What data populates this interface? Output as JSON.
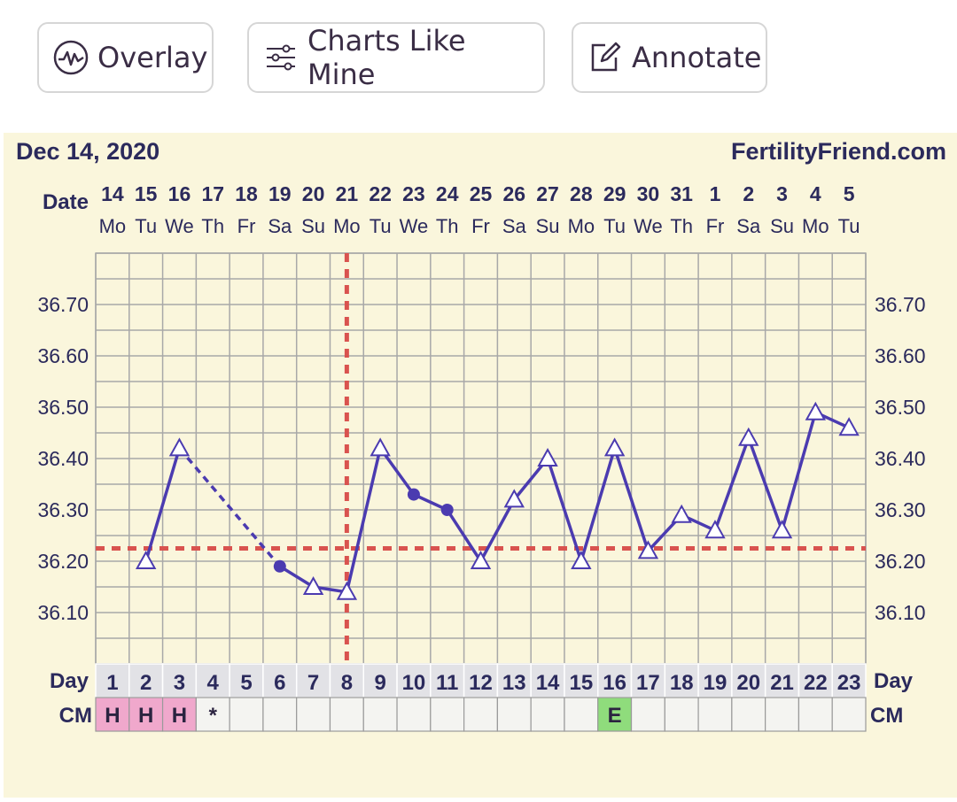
{
  "toolbar": {
    "overlay": {
      "label": "Overlay",
      "icon": "pulse-circle-icon"
    },
    "charts_like_mine": {
      "label": "Charts Like Mine",
      "icon": "sliders-icon"
    },
    "annotate": {
      "label": "Annotate",
      "icon": "edit-icon"
    }
  },
  "chart_data": {
    "type": "line",
    "title": "Dec 14, 2020",
    "brand": "FertilityFriend.com",
    "date_label": "Date",
    "day_label": "Day",
    "cm_label": "CM",
    "dates": [
      "14",
      "15",
      "16",
      "17",
      "18",
      "19",
      "20",
      "21",
      "22",
      "23",
      "24",
      "25",
      "26",
      "27",
      "28",
      "29",
      "30",
      "31",
      "1",
      "2",
      "3",
      "4",
      "5"
    ],
    "weekdays": [
      "Mo",
      "Tu",
      "We",
      "Th",
      "Fr",
      "Sa",
      "Su",
      "Mo",
      "Tu",
      "We",
      "Th",
      "Fr",
      "Sa",
      "Su",
      "Mo",
      "Tu",
      "We",
      "Th",
      "Fr",
      "Sa",
      "Su",
      "Mo",
      "Tu"
    ],
    "days": [
      1,
      2,
      3,
      4,
      5,
      6,
      7,
      8,
      9,
      10,
      11,
      12,
      13,
      14,
      15,
      16,
      17,
      18,
      19,
      20,
      21,
      22,
      23
    ],
    "ylim": [
      36.0,
      36.8
    ],
    "yticks": [
      "36.10",
      "36.20",
      "36.30",
      "36.40",
      "36.50",
      "36.60",
      "36.70"
    ],
    "temps": [
      {
        "day": 2,
        "value": 36.2,
        "marker": "triangle"
      },
      {
        "day": 3,
        "value": 36.42,
        "marker": "triangle"
      },
      {
        "day": 6,
        "value": 36.19,
        "marker": "circle"
      },
      {
        "day": 7,
        "value": 36.15,
        "marker": "triangle"
      },
      {
        "day": 8,
        "value": 36.14,
        "marker": "triangle"
      },
      {
        "day": 9,
        "value": 36.42,
        "marker": "triangle"
      },
      {
        "day": 10,
        "value": 36.33,
        "marker": "circle"
      },
      {
        "day": 11,
        "value": 36.3,
        "marker": "circle"
      },
      {
        "day": 12,
        "value": 36.2,
        "marker": "triangle"
      },
      {
        "day": 13,
        "value": 36.32,
        "marker": "triangle"
      },
      {
        "day": 14,
        "value": 36.4,
        "marker": "triangle"
      },
      {
        "day": 15,
        "value": 36.2,
        "marker": "triangle"
      },
      {
        "day": 16,
        "value": 36.42,
        "marker": "triangle"
      },
      {
        "day": 17,
        "value": 36.22,
        "marker": "triangle"
      },
      {
        "day": 18,
        "value": 36.29,
        "marker": "triangle"
      },
      {
        "day": 19,
        "value": 36.26,
        "marker": "triangle"
      },
      {
        "day": 20,
        "value": 36.44,
        "marker": "triangle"
      },
      {
        "day": 21,
        "value": 36.26,
        "marker": "triangle"
      },
      {
        "day": 22,
        "value": 36.49,
        "marker": "triangle"
      },
      {
        "day": 23,
        "value": 36.46,
        "marker": "triangle"
      }
    ],
    "gap_segments": [
      [
        3,
        6
      ]
    ],
    "coverline": 36.225,
    "ovulation_day": 8,
    "cm": [
      {
        "day": 1,
        "code": "H",
        "color": "#f0a8cc"
      },
      {
        "day": 2,
        "code": "H",
        "color": "#f0a8cc"
      },
      {
        "day": 3,
        "code": "H",
        "color": "#f0a8cc"
      },
      {
        "day": 4,
        "code": "*",
        "color": ""
      },
      {
        "day": 16,
        "code": "E",
        "color": "#8fdc7c"
      }
    ],
    "colors": {
      "background": "#faf6dc",
      "line": "#4b3bb0",
      "grid": "#a8a8a8",
      "coverline": "#d9534f",
      "text": "#2b2a5c"
    }
  }
}
